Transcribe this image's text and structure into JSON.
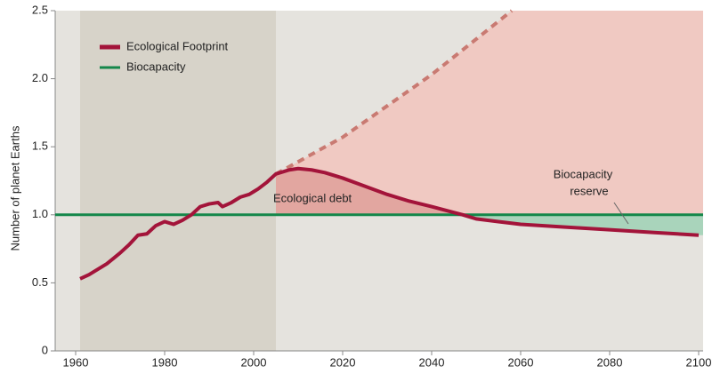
{
  "chart_data": {
    "type": "line",
    "y_label": "Number of planet Earths",
    "xlim": [
      1955.4,
      2101
    ],
    "ylim": [
      0,
      2.5
    ],
    "xticks": [
      1960,
      1980,
      2000,
      2020,
      2040,
      2060,
      2080,
      2100
    ],
    "yticks": [
      0,
      {
        "value": 0.5,
        "label": "0.5"
      },
      {
        "value": 1,
        "label": "1.0"
      },
      {
        "value": 1.5,
        "label": "1.5"
      },
      {
        "value": 2,
        "label": "2.0"
      },
      {
        "value": 2.5,
        "label": "2.5"
      }
    ],
    "shaded_span": [
      1961,
      2005
    ],
    "series": [
      {
        "name": "Ecological Footprint",
        "color": "#a3143a",
        "x": [
          1961,
          1963,
          1965,
          1967,
          1970,
          1972,
          1974,
          1976,
          1978,
          1980,
          1982,
          1984,
          1986,
          1988,
          1990,
          1992,
          1993,
          1995,
          1997,
          1999,
          2000,
          2001,
          2003,
          2005,
          2008,
          2010,
          2013,
          2016,
          2020,
          2025,
          2030,
          2035,
          2040,
          2047,
          2050,
          2055,
          2060,
          2070,
          2080,
          2090,
          2100
        ],
        "values": [
          0.53,
          0.56,
          0.6,
          0.64,
          0.72,
          0.78,
          0.85,
          0.86,
          0.92,
          0.95,
          0.93,
          0.96,
          1.0,
          1.06,
          1.08,
          1.09,
          1.06,
          1.09,
          1.13,
          1.15,
          1.17,
          1.19,
          1.24,
          1.3,
          1.33,
          1.34,
          1.33,
          1.31,
          1.27,
          1.21,
          1.15,
          1.1,
          1.06,
          1.0,
          0.97,
          0.95,
          0.93,
          0.91,
          0.89,
          0.87,
          0.85
        ]
      },
      {
        "name": "Biocapacity",
        "color": "#14874a",
        "x": [
          1955.4,
          2101
        ],
        "values": [
          1,
          1
        ]
      }
    ],
    "projection": {
      "color": "#c97a72",
      "x": [
        2005,
        2020,
        2040,
        2058
      ],
      "values": [
        1.3,
        1.57,
        2.03,
        2.5
      ]
    },
    "annotations": [
      "Ecological debt",
      "Biocapacity",
      "reserve"
    ]
  }
}
